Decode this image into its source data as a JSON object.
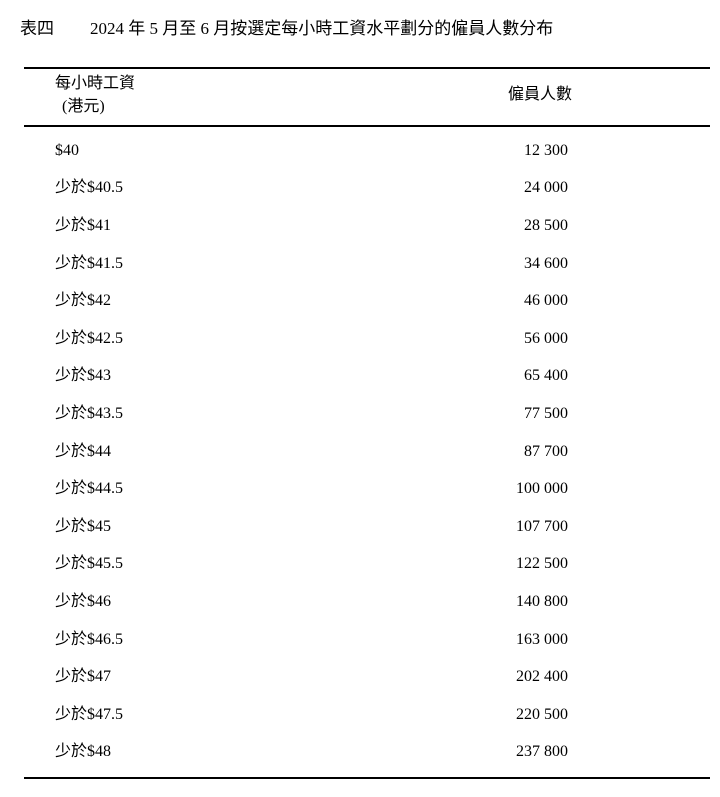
{
  "page": {
    "title_label": "表四",
    "title": "2024 年 5 月至 6 月按選定每小時工資水平劃分的僱員人數分布"
  },
  "table": {
    "header": {
      "wage_line1": "每小時工資",
      "wage_line2": "(港元)",
      "employees": "僱員人數"
    },
    "rows": [
      {
        "wage": "$40",
        "count": "12 300"
      },
      {
        "wage": "少於$40.5",
        "count": "24 000"
      },
      {
        "wage": "少於$41",
        "count": "28 500"
      },
      {
        "wage": "少於$41.5",
        "count": "34 600"
      },
      {
        "wage": "少於$42",
        "count": "46 000"
      },
      {
        "wage": "少於$42.5",
        "count": "56 000"
      },
      {
        "wage": "少於$43",
        "count": "65 400"
      },
      {
        "wage": "少於$43.5",
        "count": "77 500"
      },
      {
        "wage": "少於$44",
        "count": "87 700"
      },
      {
        "wage": "少於$44.5",
        "count": "100 000"
      },
      {
        "wage": "少於$45",
        "count": "107 700"
      },
      {
        "wage": "少於$45.5",
        "count": "122 500"
      },
      {
        "wage": "少於$46",
        "count": "140 800"
      },
      {
        "wage": "少於$46.5",
        "count": "163 000"
      },
      {
        "wage": "少於$47",
        "count": "202 400"
      },
      {
        "wage": "少於$47.5",
        "count": "220 500"
      },
      {
        "wage": "少於$48",
        "count": "237 800"
      }
    ]
  },
  "colors": {
    "text": "#000000",
    "rule": "#000000",
    "background": "#ffffff"
  }
}
